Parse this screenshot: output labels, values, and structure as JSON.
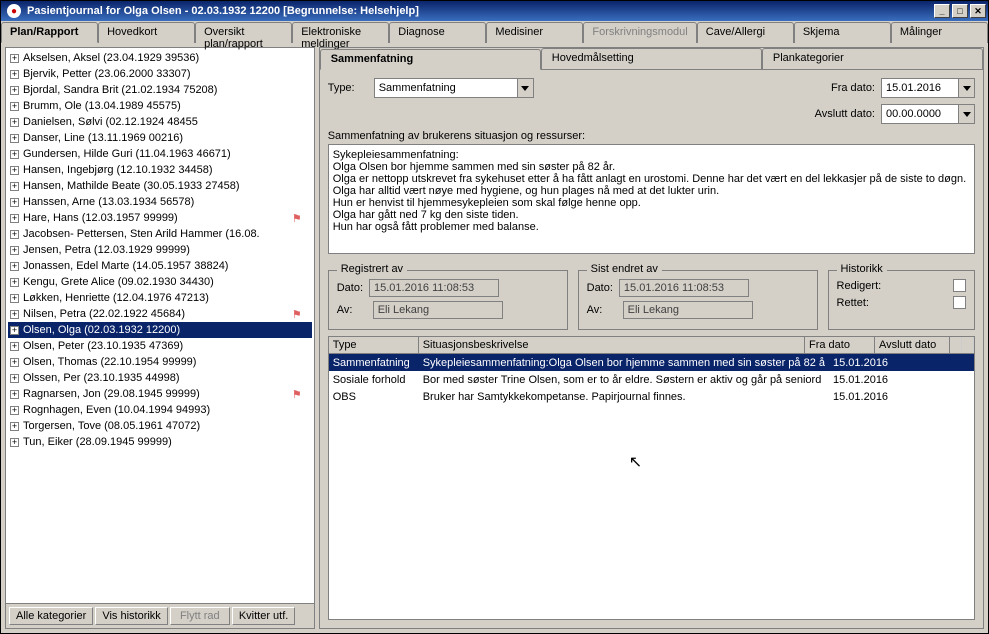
{
  "window": {
    "title": "Pasientjournal for Olga Olsen - 02.03.1932 12200   [Begrunnelse: Helsehjelp]"
  },
  "main_tabs": [
    {
      "label": "Plan/Rapport",
      "active": true
    },
    {
      "label": "Hovedkort"
    },
    {
      "label": "Oversikt plan/rapport"
    },
    {
      "label": "Elektroniske meldinger"
    },
    {
      "label": "Diagnose"
    },
    {
      "label": "Medisiner"
    },
    {
      "label": "Forskrivningsmodul",
      "disabled": true
    },
    {
      "label": "Cave/Allergi"
    },
    {
      "label": "Skjema"
    },
    {
      "label": "Målinger"
    }
  ],
  "patients": [
    {
      "name": "Akselsen, Aksel (23.04.1929 39536)"
    },
    {
      "name": "Bjervik, Petter (23.06.2000 33307)"
    },
    {
      "name": "Bjordal, Sandra Brit (21.02.1934 75208)"
    },
    {
      "name": "Brumm, Ole (13.04.1989 45575)"
    },
    {
      "name": "Danielsen, Sølvi (02.12.1924 48455"
    },
    {
      "name": "Danser, Line (13.11.1969 00216)"
    },
    {
      "name": "Gundersen, Hilde Guri (11.04.1963 46671)"
    },
    {
      "name": "Hansen, Ingebjørg (12.10.1932 34458)"
    },
    {
      "name": "Hansen, Mathilde Beate (30.05.1933 27458)"
    },
    {
      "name": "Hanssen, Arne (13.03.1934 56578)"
    },
    {
      "name": "Hare, Hans (12.03.1957 99999)",
      "flag": true
    },
    {
      "name": "Jacobsen- Pettersen, Sten Arild Hammer (16.08."
    },
    {
      "name": "Jensen, Petra (12.03.1929 99999)"
    },
    {
      "name": "Jonassen, Edel Marte (14.05.1957 38824)"
    },
    {
      "name": "Kengu, Grete Alice (09.02.1930 34430)"
    },
    {
      "name": "Løkken, Henriette (12.04.1976 47213)"
    },
    {
      "name": "Nilsen, Petra (22.02.1922 45684)",
      "flag": true
    },
    {
      "name": "Olsen, Olga (02.03.1932 12200)",
      "selected": true
    },
    {
      "name": "Olsen, Peter (23.10.1935 47369)"
    },
    {
      "name": "Olsen, Thomas (22.10.1954 99999)"
    },
    {
      "name": "Olssen, Per (23.10.1935 44998)"
    },
    {
      "name": "Ragnarsen, Jon (29.08.1945 99999)",
      "flag": true
    },
    {
      "name": "Rognhagen, Even (10.04.1994 94993)"
    },
    {
      "name": "Torgersen, Tove (08.05.1961 47072)"
    },
    {
      "name": "Tun, Eiker (28.09.1945 99999)"
    }
  ],
  "left_buttons": {
    "all": "Alle kategorier",
    "history": "Vis historikk",
    "move": "Flytt rad",
    "confirm": "Kvitter utf."
  },
  "sub_tabs": [
    {
      "label": "Sammenfatning",
      "active": true
    },
    {
      "label": "Hovedmålsetting"
    },
    {
      "label": "Plankategorier"
    }
  ],
  "form": {
    "type_label": "Type:",
    "type_value": "Sammenfatning",
    "from_label": "Fra dato:",
    "from_value": "15.01.2016",
    "end_label": "Avslutt dato:",
    "end_value": "00.00.0000",
    "summary_label": "Sammenfatning av brukerens situasjon og ressurser:",
    "summary_text": "Sykepleiesammenfatning:\nOlga Olsen bor hjemme sammen med sin søster på 82 år.\nOlga er nettopp utskrevet fra sykehuset etter å ha fått anlagt en urostomi. Denne har det vært en del lekkasjer på de siste to døgn.\nOlga har alltid vært nøye med hygiene, og hun plages nå med at det lukter urin.\nHun er henvist til hjemmesykepleien som skal følge henne opp.\nOlga har gått ned 7 kg den siste tiden.\nHun har også fått problemer med balanse."
  },
  "registered": {
    "legend": "Registrert av",
    "date_label": "Dato:",
    "date": "15.01.2016  11:08:53",
    "by_label": "Av:",
    "by": "Eli Lekang"
  },
  "changed": {
    "legend": "Sist endret av",
    "date_label": "Dato:",
    "date": "15.01.2016  11:08:53",
    "by_label": "Av:",
    "by": "Eli Lekang"
  },
  "history": {
    "legend": "Historikk",
    "edited": "Redigert:",
    "corrected": "Rettet:"
  },
  "grid": {
    "cols": {
      "type": "Type",
      "desc": "Situasjonsbeskrivelse",
      "from": "Fra dato",
      "end": "Avslutt dato"
    },
    "rows": [
      {
        "type": "Sammenfatning",
        "desc": "Sykepleiesammenfatning:Olga Olsen bor hjemme sammen med sin søster på 82 å",
        "from": "15.01.2016",
        "end": "",
        "sel": true
      },
      {
        "type": "Sosiale forhold",
        "desc": "Bor med søster Trine Olsen, som er to år eldre. Søstern er aktiv og går på seniord",
        "from": "15.01.2016",
        "end": ""
      },
      {
        "type": "OBS",
        "desc": "Bruker har Samtykkekompetanse. Papirjournal finnes.",
        "from": "15.01.2016",
        "end": ""
      }
    ]
  }
}
